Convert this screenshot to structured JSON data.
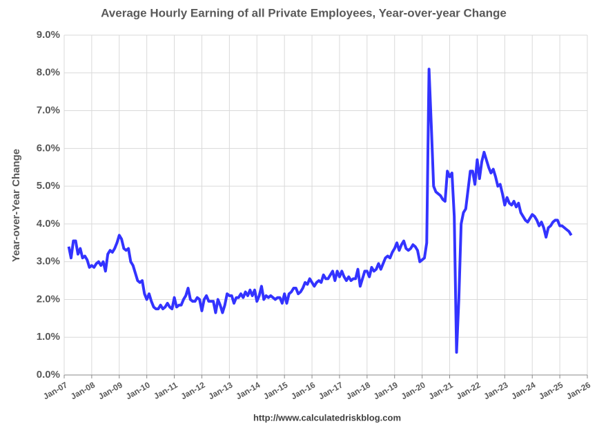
{
  "chart_data": {
    "type": "line",
    "title": "Average Hourly Earning of all Private Employees, Year-over-year Change",
    "y_label": "Year-over-Year Change",
    "annotation": "http://www.calculatedriskblog.com",
    "grid": true,
    "xlim": [
      "2007-01",
      "2026-01"
    ],
    "xticks": [
      {
        "value": "2007-01",
        "label": "Jan-07"
      },
      {
        "value": "2008-01",
        "label": "Jan-08"
      },
      {
        "value": "2009-01",
        "label": "Jan-09"
      },
      {
        "value": "2010-01",
        "label": "Jan-10"
      },
      {
        "value": "2011-01",
        "label": "Jan-11"
      },
      {
        "value": "2012-01",
        "label": "Jan-12"
      },
      {
        "value": "2013-01",
        "label": "Jan-13"
      },
      {
        "value": "2014-01",
        "label": "Jan-14"
      },
      {
        "value": "2015-01",
        "label": "Jan-15"
      },
      {
        "value": "2016-01",
        "label": "Jan-16"
      },
      {
        "value": "2017-01",
        "label": "Jan-17"
      },
      {
        "value": "2018-01",
        "label": "Jan-18"
      },
      {
        "value": "2019-01",
        "label": "Jan-19"
      },
      {
        "value": "2020-01",
        "label": "Jan-20"
      },
      {
        "value": "2021-01",
        "label": "Jan-21"
      },
      {
        "value": "2022-01",
        "label": "Jan-22"
      },
      {
        "value": "2023-01",
        "label": "Jan-23"
      },
      {
        "value": "2024-01",
        "label": "Jan-24"
      },
      {
        "value": "2025-01",
        "label": "Jan-25"
      },
      {
        "value": "2026-01",
        "label": "Jan-26"
      }
    ],
    "ylim": [
      0,
      9
    ],
    "yticks": [
      {
        "value": 0,
        "label": "0.0%"
      },
      {
        "value": 1,
        "label": "1.0%"
      },
      {
        "value": 2,
        "label": "2.0%"
      },
      {
        "value": 3,
        "label": "3.0%"
      },
      {
        "value": 4,
        "label": "4.0%"
      },
      {
        "value": 5,
        "label": "5.0%"
      },
      {
        "value": 6,
        "label": "6.0%"
      },
      {
        "value": 7,
        "label": "7.0%"
      },
      {
        "value": 8,
        "label": "8.0%"
      },
      {
        "value": 9,
        "label": "9.0%"
      }
    ],
    "x": [
      "2007-03",
      "2007-04",
      "2007-05",
      "2007-06",
      "2007-07",
      "2007-08",
      "2007-09",
      "2007-10",
      "2007-11",
      "2007-12",
      "2008-01",
      "2008-02",
      "2008-03",
      "2008-04",
      "2008-05",
      "2008-06",
      "2008-07",
      "2008-08",
      "2008-09",
      "2008-10",
      "2008-11",
      "2008-12",
      "2009-01",
      "2009-02",
      "2009-03",
      "2009-04",
      "2009-05",
      "2009-06",
      "2009-07",
      "2009-08",
      "2009-09",
      "2009-10",
      "2009-11",
      "2009-12",
      "2010-01",
      "2010-02",
      "2010-03",
      "2010-04",
      "2010-05",
      "2010-06",
      "2010-07",
      "2010-08",
      "2010-09",
      "2010-10",
      "2010-11",
      "2010-12",
      "2011-01",
      "2011-02",
      "2011-03",
      "2011-04",
      "2011-05",
      "2011-06",
      "2011-07",
      "2011-08",
      "2011-09",
      "2011-10",
      "2011-11",
      "2011-12",
      "2012-01",
      "2012-02",
      "2012-03",
      "2012-04",
      "2012-05",
      "2012-06",
      "2012-07",
      "2012-08",
      "2012-09",
      "2012-10",
      "2012-11",
      "2012-12",
      "2013-01",
      "2013-02",
      "2013-03",
      "2013-04",
      "2013-05",
      "2013-06",
      "2013-07",
      "2013-08",
      "2013-09",
      "2013-10",
      "2013-11",
      "2013-12",
      "2014-01",
      "2014-02",
      "2014-03",
      "2014-04",
      "2014-05",
      "2014-06",
      "2014-07",
      "2014-08",
      "2014-09",
      "2014-10",
      "2014-11",
      "2014-12",
      "2015-01",
      "2015-02",
      "2015-03",
      "2015-04",
      "2015-05",
      "2015-06",
      "2015-07",
      "2015-08",
      "2015-09",
      "2015-10",
      "2015-11",
      "2015-12",
      "2016-01",
      "2016-02",
      "2016-03",
      "2016-04",
      "2016-05",
      "2016-06",
      "2016-07",
      "2016-08",
      "2016-09",
      "2016-10",
      "2016-11",
      "2016-12",
      "2017-01",
      "2017-02",
      "2017-03",
      "2017-04",
      "2017-05",
      "2017-06",
      "2017-07",
      "2017-08",
      "2017-09",
      "2017-10",
      "2017-11",
      "2017-12",
      "2018-01",
      "2018-02",
      "2018-03",
      "2018-04",
      "2018-05",
      "2018-06",
      "2018-07",
      "2018-08",
      "2018-09",
      "2018-10",
      "2018-11",
      "2018-12",
      "2019-01",
      "2019-02",
      "2019-03",
      "2019-04",
      "2019-05",
      "2019-06",
      "2019-07",
      "2019-08",
      "2019-09",
      "2019-10",
      "2019-11",
      "2019-12",
      "2020-01",
      "2020-02",
      "2020-03",
      "2020-04",
      "2020-05",
      "2020-06",
      "2020-07",
      "2020-08",
      "2020-09",
      "2020-10",
      "2020-11",
      "2020-12",
      "2021-01",
      "2021-02",
      "2021-03",
      "2021-04",
      "2021-05",
      "2021-06",
      "2021-07",
      "2021-08",
      "2021-09",
      "2021-10",
      "2021-11",
      "2021-12",
      "2022-01",
      "2022-02",
      "2022-03",
      "2022-04",
      "2022-05",
      "2022-06",
      "2022-07",
      "2022-08",
      "2022-09",
      "2022-10",
      "2022-11",
      "2022-12",
      "2023-01",
      "2023-02",
      "2023-03",
      "2023-04",
      "2023-05",
      "2023-06",
      "2023-07",
      "2023-08",
      "2023-09",
      "2023-10",
      "2023-11",
      "2023-12",
      "2024-01",
      "2024-02",
      "2024-03",
      "2024-04",
      "2024-05",
      "2024-06",
      "2024-07",
      "2024-08",
      "2024-09",
      "2024-10",
      "2024-11",
      "2024-12",
      "2025-01",
      "2025-02",
      "2025-03",
      "2025-04",
      "2025-05",
      "2025-06"
    ],
    "series": [
      {
        "color": "#3333ff",
        "values": [
          3.4,
          3.1,
          3.55,
          3.55,
          3.2,
          3.35,
          3.1,
          3.15,
          3.05,
          2.85,
          2.9,
          2.85,
          2.95,
          3.0,
          2.9,
          3.0,
          2.75,
          3.2,
          3.3,
          3.25,
          3.35,
          3.5,
          3.7,
          3.6,
          3.35,
          3.3,
          3.35,
          3.0,
          2.9,
          2.7,
          2.5,
          2.45,
          2.5,
          2.15,
          2.0,
          2.15,
          1.95,
          1.8,
          1.75,
          1.75,
          1.85,
          1.75,
          1.8,
          1.9,
          1.8,
          1.75,
          2.05,
          1.8,
          1.85,
          1.85,
          2.0,
          2.1,
          2.3,
          2.0,
          1.95,
          1.95,
          2.05,
          2.0,
          1.7,
          2.0,
          2.1,
          1.95,
          1.95,
          1.95,
          1.65,
          2.0,
          1.85,
          1.65,
          1.85,
          2.15,
          2.1,
          2.1,
          1.9,
          2.05,
          2.05,
          2.15,
          2.05,
          2.2,
          2.1,
          2.25,
          2.1,
          2.25,
          1.95,
          2.1,
          2.35,
          2.0,
          2.1,
          2.05,
          2.1,
          2.05,
          2.0,
          2.05,
          2.05,
          1.9,
          2.15,
          1.9,
          2.15,
          2.2,
          2.3,
          2.3,
          2.15,
          2.2,
          2.3,
          2.45,
          2.4,
          2.55,
          2.45,
          2.35,
          2.45,
          2.5,
          2.45,
          2.65,
          2.55,
          2.55,
          2.65,
          2.75,
          2.5,
          2.75,
          2.6,
          2.75,
          2.6,
          2.5,
          2.6,
          2.5,
          2.55,
          2.55,
          2.8,
          2.35,
          2.55,
          2.75,
          2.75,
          2.6,
          2.85,
          2.75,
          2.8,
          2.95,
          2.8,
          2.95,
          3.1,
          3.15,
          3.1,
          3.25,
          3.35,
          3.5,
          3.3,
          3.45,
          3.55,
          3.35,
          3.3,
          3.35,
          3.45,
          3.4,
          3.3,
          3.0,
          3.05,
          3.1,
          3.5,
          8.1,
          6.6,
          5.0,
          4.85,
          4.8,
          4.75,
          4.65,
          4.6,
          5.4,
          5.25,
          5.35,
          4.2,
          0.6,
          2.0,
          4.0,
          4.3,
          4.4,
          4.9,
          5.4,
          5.4,
          5.05,
          5.7,
          5.2,
          5.65,
          5.9,
          5.7,
          5.5,
          5.35,
          5.45,
          5.25,
          5.0,
          5.05,
          4.8,
          4.5,
          4.7,
          4.55,
          4.5,
          4.6,
          4.45,
          4.55,
          4.3,
          4.2,
          4.1,
          4.05,
          4.15,
          4.25,
          4.2,
          4.1,
          3.95,
          4.05,
          3.9,
          3.65,
          3.9,
          3.95,
          4.05,
          4.1,
          4.1,
          3.95,
          3.95,
          3.9,
          3.85,
          3.8,
          3.7
        ]
      }
    ]
  }
}
